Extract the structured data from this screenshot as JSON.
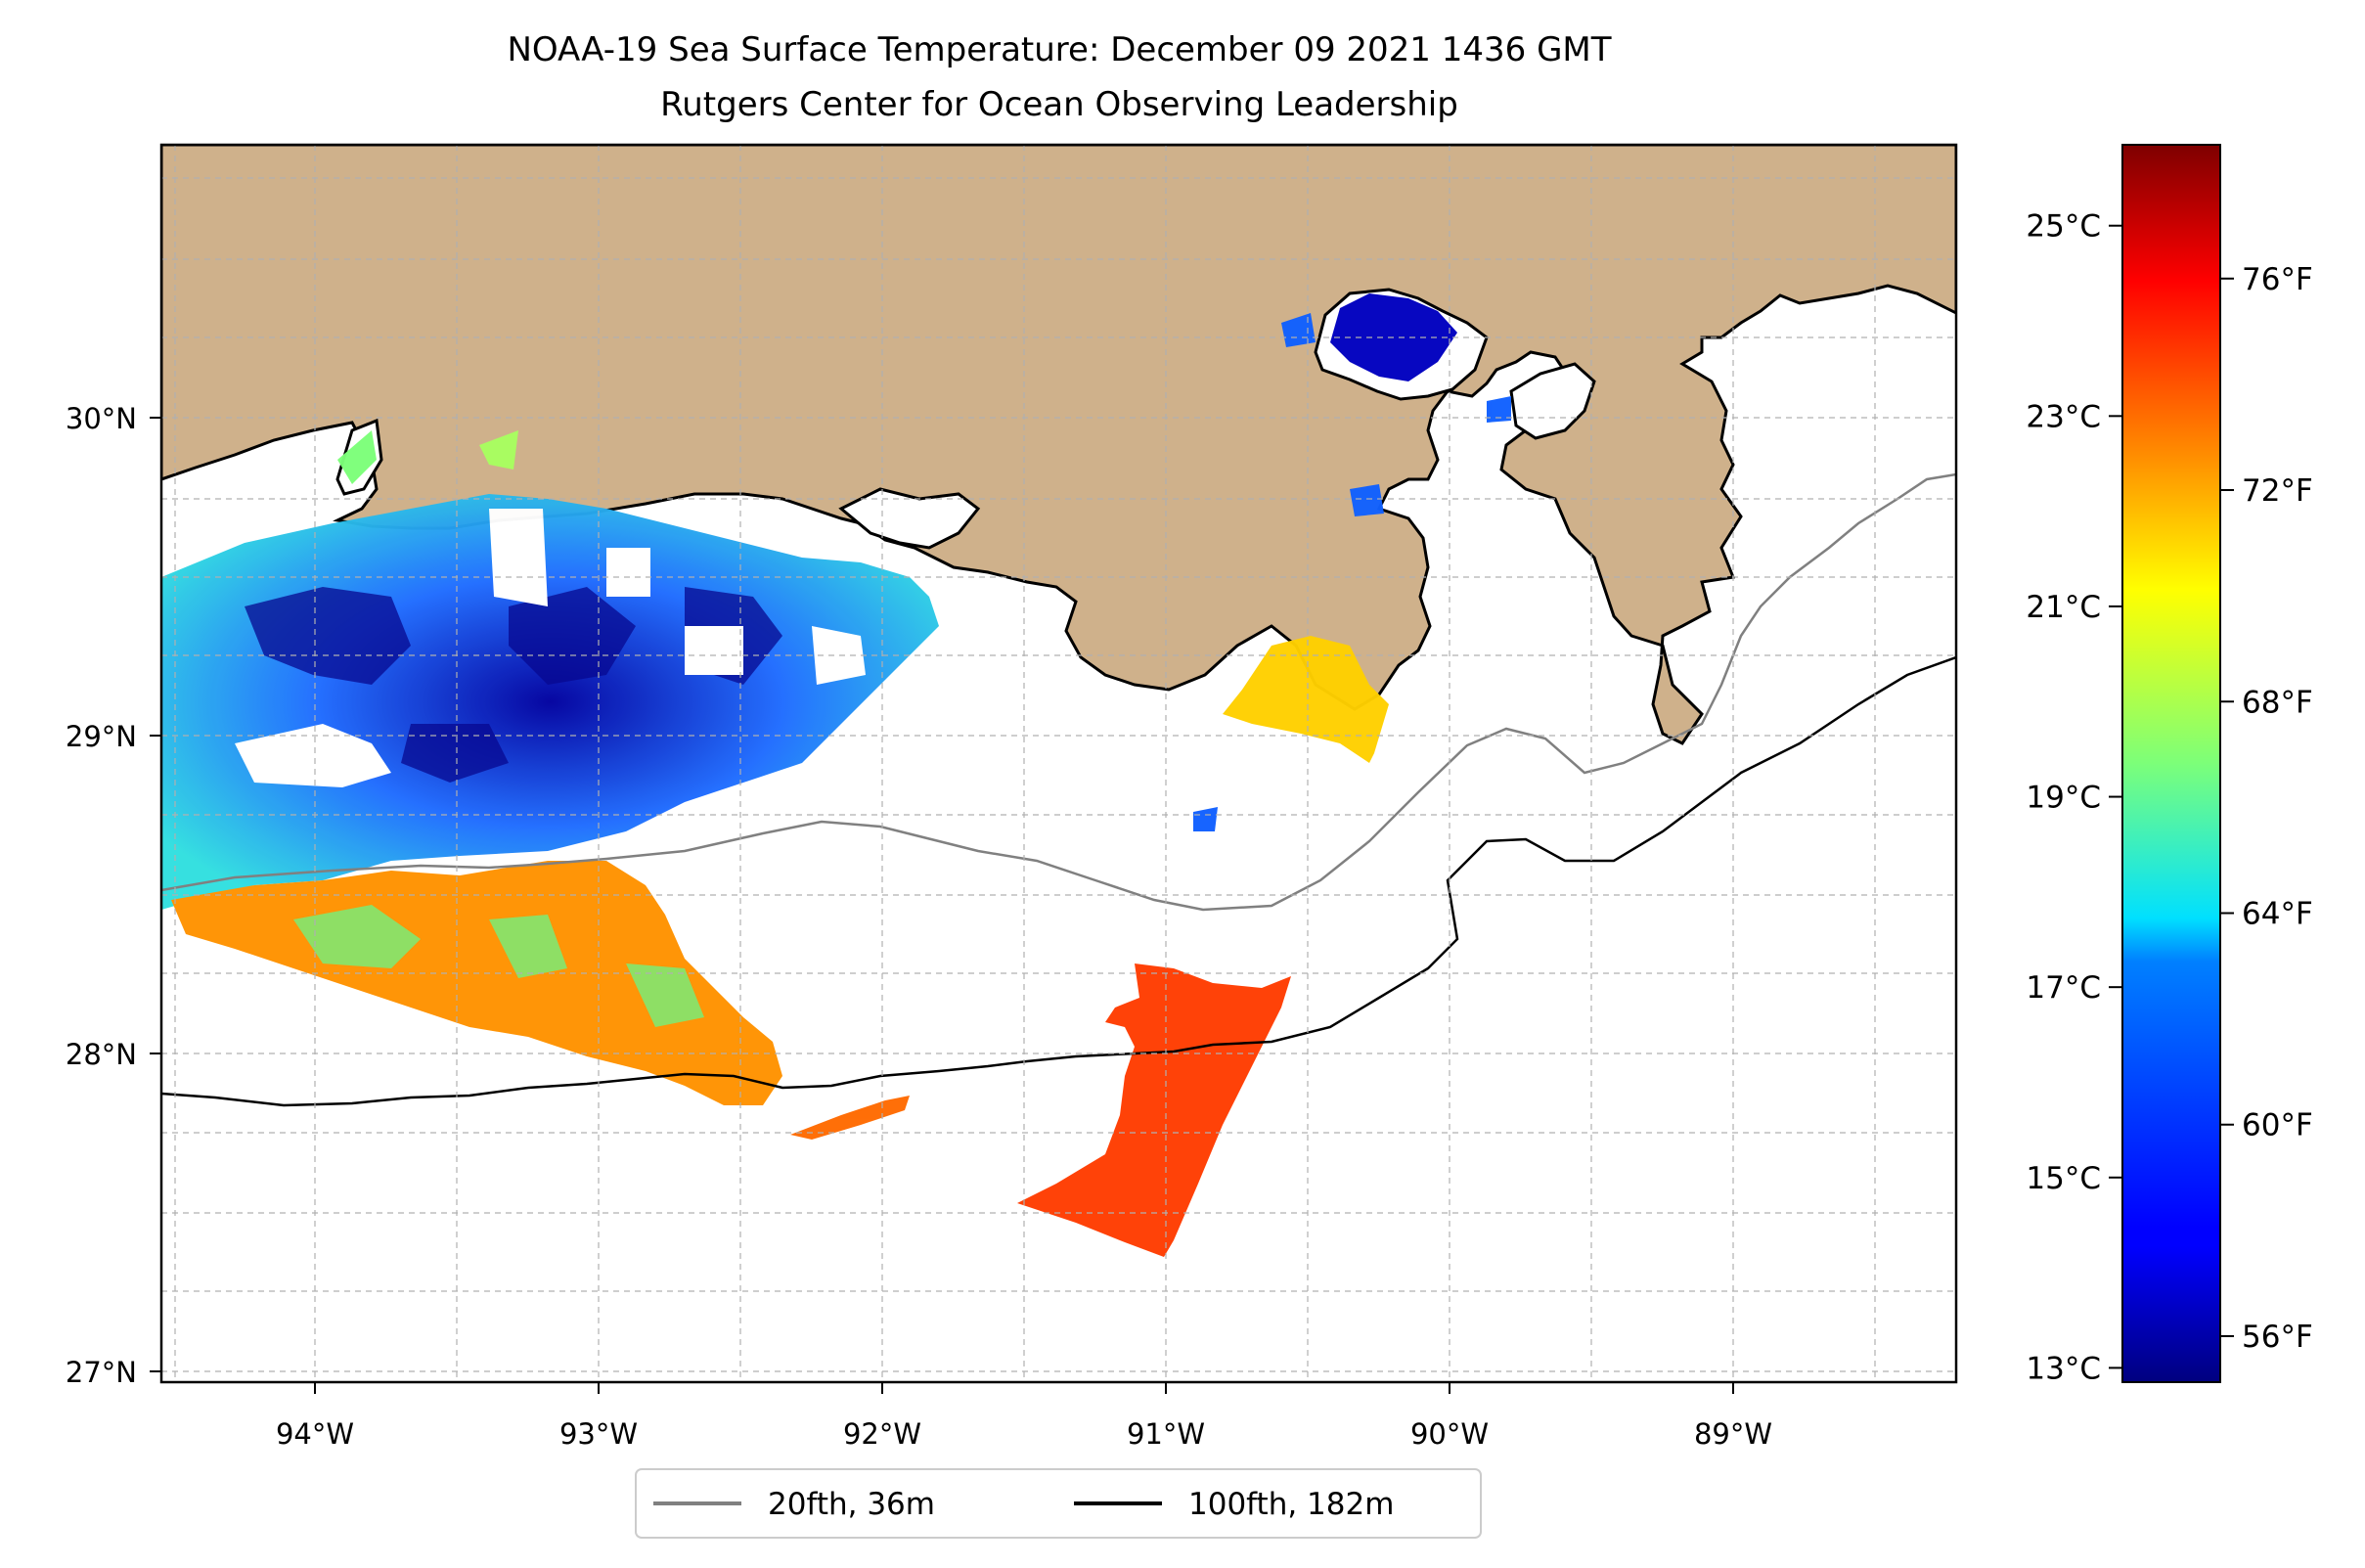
{
  "title": {
    "line1": "NOAA-19 Sea Surface Temperature: December 09 2021 1436 GMT",
    "line2": "Rutgers Center for Ocean Observing Leadership"
  },
  "map": {
    "lon_range": [
      -94.55,
      -88.2
    ],
    "lat_range": [
      26.93,
      30.85
    ],
    "lon_ticks": [
      {
        "value": -94,
        "label": "94°W"
      },
      {
        "value": -93,
        "label": "93°W"
      },
      {
        "value": -92,
        "label": "92°W"
      },
      {
        "value": -91,
        "label": "91°W"
      },
      {
        "value": -90,
        "label": "90°W"
      },
      {
        "value": -89,
        "label": "89°W"
      }
    ],
    "lat_ticks": [
      {
        "value": 27,
        "label": "27°N"
      },
      {
        "value": 28,
        "label": "28°N"
      },
      {
        "value": 29,
        "label": "29°N"
      },
      {
        "value": 30,
        "label": "30°N"
      }
    ],
    "gridlines": true,
    "land_color": "#cfb18b",
    "ocean_color": "#ffffff"
  },
  "legend": {
    "placement": "bottom-center",
    "items": [
      {
        "label": "20fth, 36m",
        "color": "#808080"
      },
      {
        "label": "100fth, 182m",
        "color": "#000000"
      }
    ]
  },
  "colorbar": {
    "colormap": "jet",
    "range_c": [
      12.85,
      25.85
    ],
    "celsius_ticks": [
      {
        "value": 13,
        "label": "13°C"
      },
      {
        "value": 15,
        "label": "15°C"
      },
      {
        "value": 17,
        "label": "17°C"
      },
      {
        "value": 19,
        "label": "19°C"
      },
      {
        "value": 21,
        "label": "21°C"
      },
      {
        "value": 23,
        "label": "23°C"
      },
      {
        "value": 25,
        "label": "25°C"
      }
    ],
    "fahrenheit_ticks": [
      {
        "value": 56,
        "label": "56°F"
      },
      {
        "value": 60,
        "label": "60°F"
      },
      {
        "value": 64,
        "label": "64°F"
      },
      {
        "value": 68,
        "label": "68°F"
      },
      {
        "value": 72,
        "label": "72°F"
      },
      {
        "value": 76,
        "label": "76°F"
      }
    ]
  }
}
